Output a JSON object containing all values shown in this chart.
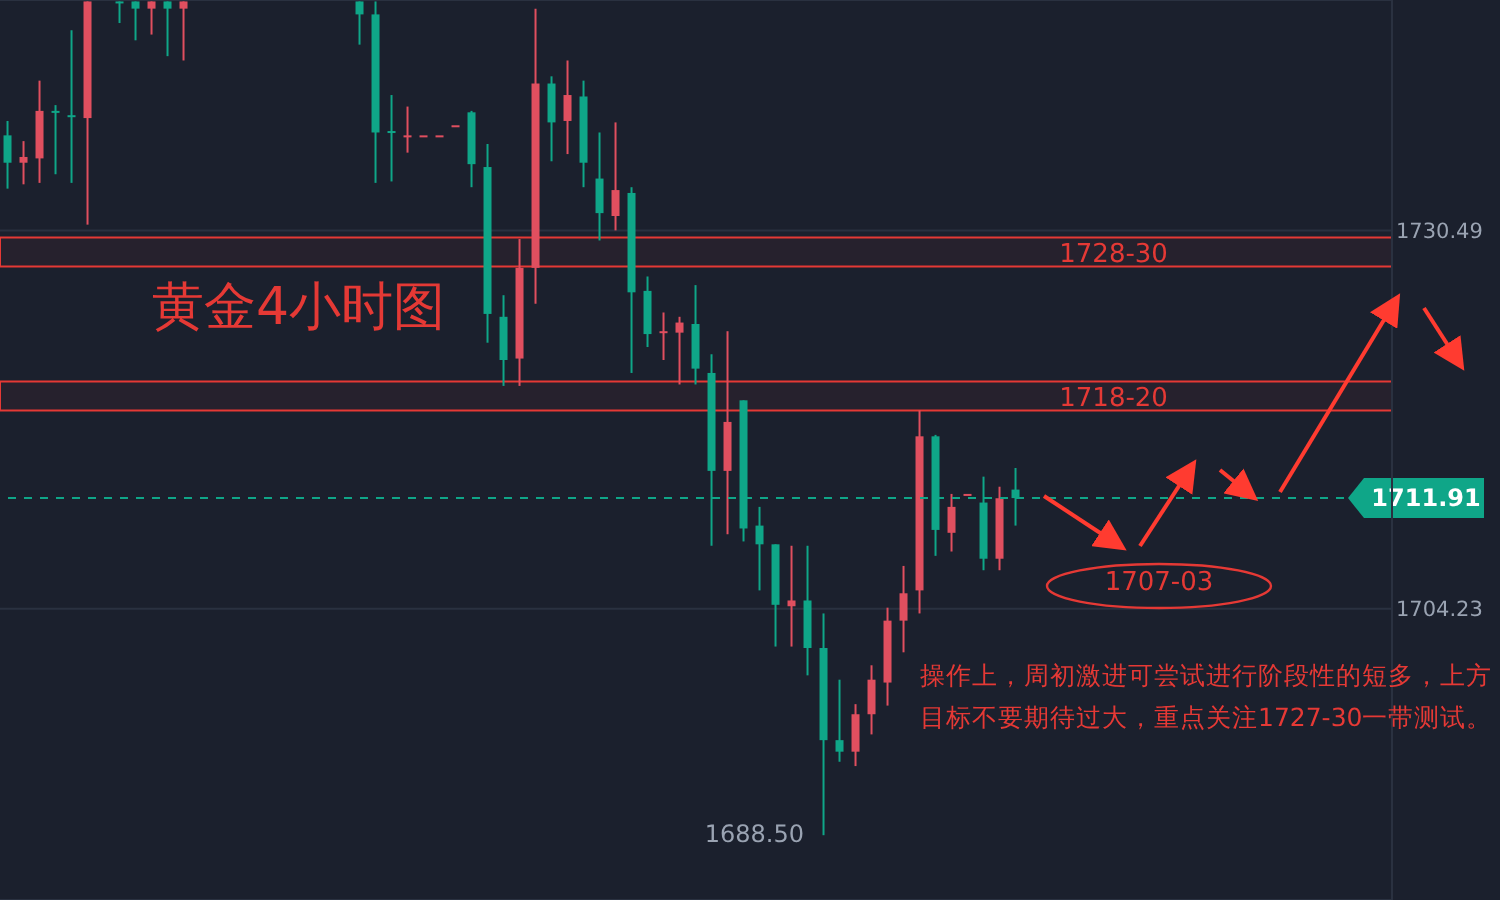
{
  "chart_data": {
    "type": "candlestick",
    "title": "黄金4小时图",
    "categories": [
      null,
      null,
      null,
      null,
      null,
      null,
      null,
      null,
      null,
      null,
      null,
      null,
      null,
      null,
      null,
      null,
      null,
      null,
      null,
      null,
      null,
      null,
      null,
      null,
      null,
      null,
      null,
      null,
      null,
      null,
      null,
      null,
      null,
      null,
      null,
      null,
      null,
      null,
      null,
      null,
      null,
      null,
      null,
      null,
      null,
      null,
      null,
      null,
      null,
      null,
      null,
      null,
      null,
      null,
      null,
      null,
      null,
      null,
      null,
      null,
      null,
      null,
      null,
      null,
      null,
      null,
      null,
      null,
      null,
      null,
      null,
      null,
      null,
      null,
      null,
      null,
      null,
      null,
      null,
      null,
      null,
      null,
      null,
      null,
      null,
      null,
      null
    ],
    "ohlc": [
      [
        1737.1,
        1738.1,
        1733.4,
        1735.2
      ],
      [
        1735.2,
        1736.7,
        1733.7,
        1735.6
      ],
      [
        1735.5,
        1740.9,
        1733.8,
        1738.8
      ],
      [
        1738.8,
        1739.2,
        1734.4,
        1738.7
      ],
      [
        1738.5,
        1744.4,
        1733.8,
        1738.4
      ],
      [
        1738.3,
        1746.4,
        1730.9,
        1746.4
      ],
      null,
      [
        1746.4,
        1746.4,
        1744.9,
        1746.3
      ],
      [
        1746.4,
        1746.4,
        1743.7,
        1745.9
      ],
      [
        1745.9,
        1746.4,
        1744.1,
        1746.4
      ],
      [
        1746.4,
        1746.4,
        1742.6,
        1745.9
      ],
      [
        1745.9,
        1746.4,
        1742.3,
        1746.4
      ],
      null,
      null,
      null,
      null,
      null,
      null,
      null,
      null,
      null,
      null,
      [
        1746.4,
        1746.4,
        1743.4,
        1745.5
      ],
      [
        1745.5,
        1746.4,
        1733.8,
        1737.3
      ],
      [
        1737.4,
        1739.9,
        1733.9,
        1737.3
      ],
      [
        1737.0,
        1739.1,
        1735.9,
        1737.1
      ],
      [
        1737.1,
        1737.1,
        1737.1,
        1737.1
      ],
      [
        1737.1,
        1737.1,
        1737.1,
        1737.1
      ],
      [
        1737.8,
        1737.8,
        1737.8,
        1737.8
      ],
      [
        1738.7,
        1738.8,
        1733.5,
        1735.1
      ],
      [
        1734.9,
        1736.5,
        1722.7,
        1724.7
      ],
      [
        1724.5,
        1726.0,
        1719.7,
        1721.5
      ],
      [
        1721.6,
        1729.9,
        1719.7,
        1727.9
      ],
      [
        1727.9,
        1745.9,
        1725.4,
        1740.7
      ],
      [
        1740.7,
        1741.2,
        1735.3,
        1738.0
      ],
      [
        1738.1,
        1742.3,
        1735.8,
        1739.9
      ],
      [
        1739.8,
        1740.9,
        1733.5,
        1735.2
      ],
      [
        1734.1,
        1737.3,
        1729.8,
        1731.7
      ],
      [
        1731.5,
        1738.0,
        1730.5,
        1733.3
      ],
      [
        1733.1,
        1733.5,
        1720.6,
        1726.2
      ],
      [
        1726.3,
        1727.3,
        1722.4,
        1723.3
      ],
      [
        1723.4,
        1724.8,
        1721.5,
        1723.5
      ],
      [
        1723.4,
        1724.5,
        1719.8,
        1724.1
      ],
      [
        1724.0,
        1726.7,
        1719.8,
        1720.9
      ],
      [
        1720.6,
        1721.9,
        1708.6,
        1713.8
      ],
      [
        1713.8,
        1723.5,
        1709.4,
        1717.2
      ],
      [
        1718.7,
        1718.7,
        1708.9,
        1709.8
      ],
      [
        1710.0,
        1711.3,
        1705.5,
        1708.7
      ],
      [
        1708.7,
        1708.7,
        1701.6,
        1704.5
      ],
      [
        1704.4,
        1708.6,
        1701.6,
        1704.8
      ],
      [
        1704.8,
        1708.6,
        1699.6,
        1701.5
      ],
      [
        1701.5,
        1703.9,
        1688.5,
        1695.1
      ],
      [
        1695.1,
        1699.3,
        1693.6,
        1694.3
      ],
      [
        1694.3,
        1697.6,
        1693.3,
        1696.9
      ],
      [
        1696.9,
        1700.3,
        1695.5,
        1699.3
      ],
      [
        1699.1,
        1704.3,
        1697.5,
        1703.4
      ],
      [
        1703.4,
        1707.2,
        1701.2,
        1705.3
      ],
      [
        1705.5,
        1718.0,
        1703.9,
        1716.2
      ],
      [
        1716.2,
        1716.3,
        1707.9,
        1709.7
      ],
      [
        1709.5,
        1712.2,
        1708.2,
        1711.3
      ],
      [
        1712.2,
        1712.2,
        1712.2,
        1712.2
      ],
      [
        1711.6,
        1713.4,
        1706.9,
        1707.7
      ],
      [
        1707.7,
        1712.7,
        1706.9,
        1711.9
      ],
      [
        1712.5,
        1714.0,
        1710.0,
        1711.91
      ],
      null,
      null,
      null,
      null,
      null,
      null,
      null,
      null,
      null,
      null,
      null,
      null,
      null,
      null,
      null,
      null,
      null,
      null,
      null,
      null,
      null,
      null,
      null
    ],
    "colors": [
      "#0fa688",
      "#e04f5f",
      "#e04f5f",
      "#0fa688",
      "#0fa688",
      "#e04f5f",
      null,
      "#0fa688",
      "#0fa688",
      "#e04f5f",
      "#0fa688",
      "#e04f5f",
      null,
      null,
      null,
      null,
      null,
      null,
      null,
      null,
      null,
      null,
      "#0fa688",
      "#0fa688",
      "#0fa688",
      "#e04f5f",
      "#e04f5f",
      "#e04f5f",
      "#e04f5f",
      "#0fa688",
      "#0fa688",
      "#0fa688",
      "#e04f5f",
      "#e04f5f",
      "#0fa688",
      "#e04f5f",
      "#0fa688",
      "#0fa688",
      "#e04f5f",
      "#0fa688",
      "#0fa688",
      "#e04f5f",
      "#e04f5f",
      "#0fa688",
      "#0fa688",
      "#e04f5f",
      "#0fa688",
      "#0fa688",
      "#0fa688",
      "#e04f5f",
      "#0fa688",
      "#0fa688",
      "#0fa688",
      "#e04f5f",
      "#e04f5f",
      "#e04f5f",
      "#e04f5f",
      "#e04f5f",
      "#0fa688",
      "#e04f5f",
      "#e04f5f",
      "#0fa688",
      "#e04f5f",
      "#0fa688",
      null,
      null,
      null,
      null,
      null,
      null,
      null,
      null,
      null,
      null,
      null,
      null,
      null,
      null,
      null,
      null,
      null,
      null,
      null,
      null,
      null,
      null,
      null
    ],
    "ylim": [
      1684,
      1746.5
    ],
    "yticks": [
      1704.23,
      1730.49
    ],
    "grid": "y",
    "ref_lines": [
      {
        "axis": "y",
        "value": 1711.91,
        "label": "1711.91",
        "color": "#0fa688",
        "line_style": "dashed"
      }
    ],
    "bands": [
      {
        "axis": "y",
        "from": 1728,
        "to": 1730,
        "label": "1728-30",
        "color": "#e53935"
      },
      {
        "axis": "y",
        "from": 1718,
        "to": 1720,
        "label": "1718-20",
        "color": "#e53935"
      }
    ],
    "annotations": [
      "1707-03",
      "1688.50",
      "操作上，周初激进可尝试进行阶段性的短多，上方目标不要期待过大，重点关注1727-30一带测试。"
    ]
  }
}
